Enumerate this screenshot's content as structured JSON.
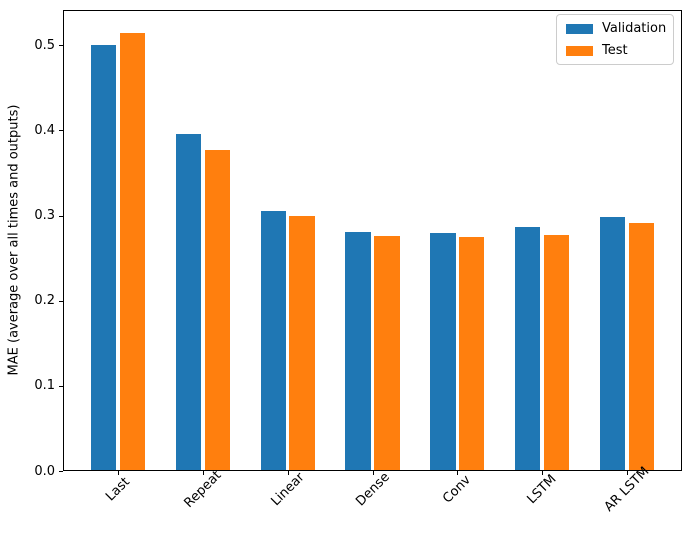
{
  "chart_data": {
    "type": "bar",
    "title": "",
    "xlabel": "",
    "ylabel": "MAE (average over all times and outputs)",
    "categories": [
      "Last",
      "Repeat",
      "Linear",
      "Dense",
      "Conv",
      "LSTM",
      "AR LSTM"
    ],
    "series": [
      {
        "name": "Validation",
        "color": "#1f77b4",
        "values": [
          0.501,
          0.396,
          0.306,
          0.281,
          0.28,
          0.287,
          0.298
        ]
      },
      {
        "name": "Test",
        "color": "#ff7f0e",
        "values": [
          0.515,
          0.377,
          0.3,
          0.276,
          0.275,
          0.277,
          0.292
        ]
      }
    ],
    "ylim": [
      0,
      0.5415
    ],
    "xlim": [
      -0.65,
      6.65
    ],
    "yticks": [
      0.0,
      0.1,
      0.2,
      0.3,
      0.4,
      0.5
    ],
    "ytick_labels": [
      "0.0",
      "0.1",
      "0.2",
      "0.3",
      "0.4",
      "0.5"
    ],
    "bar_width": 0.3,
    "bar_offsets": [
      -0.17,
      0.17
    ],
    "xtick_rotation": 45,
    "grid": false,
    "legend": {
      "position": "upper right",
      "entries": [
        "Validation",
        "Test"
      ]
    },
    "axis_color": "#000000",
    "background_color": "#ffffff"
  }
}
